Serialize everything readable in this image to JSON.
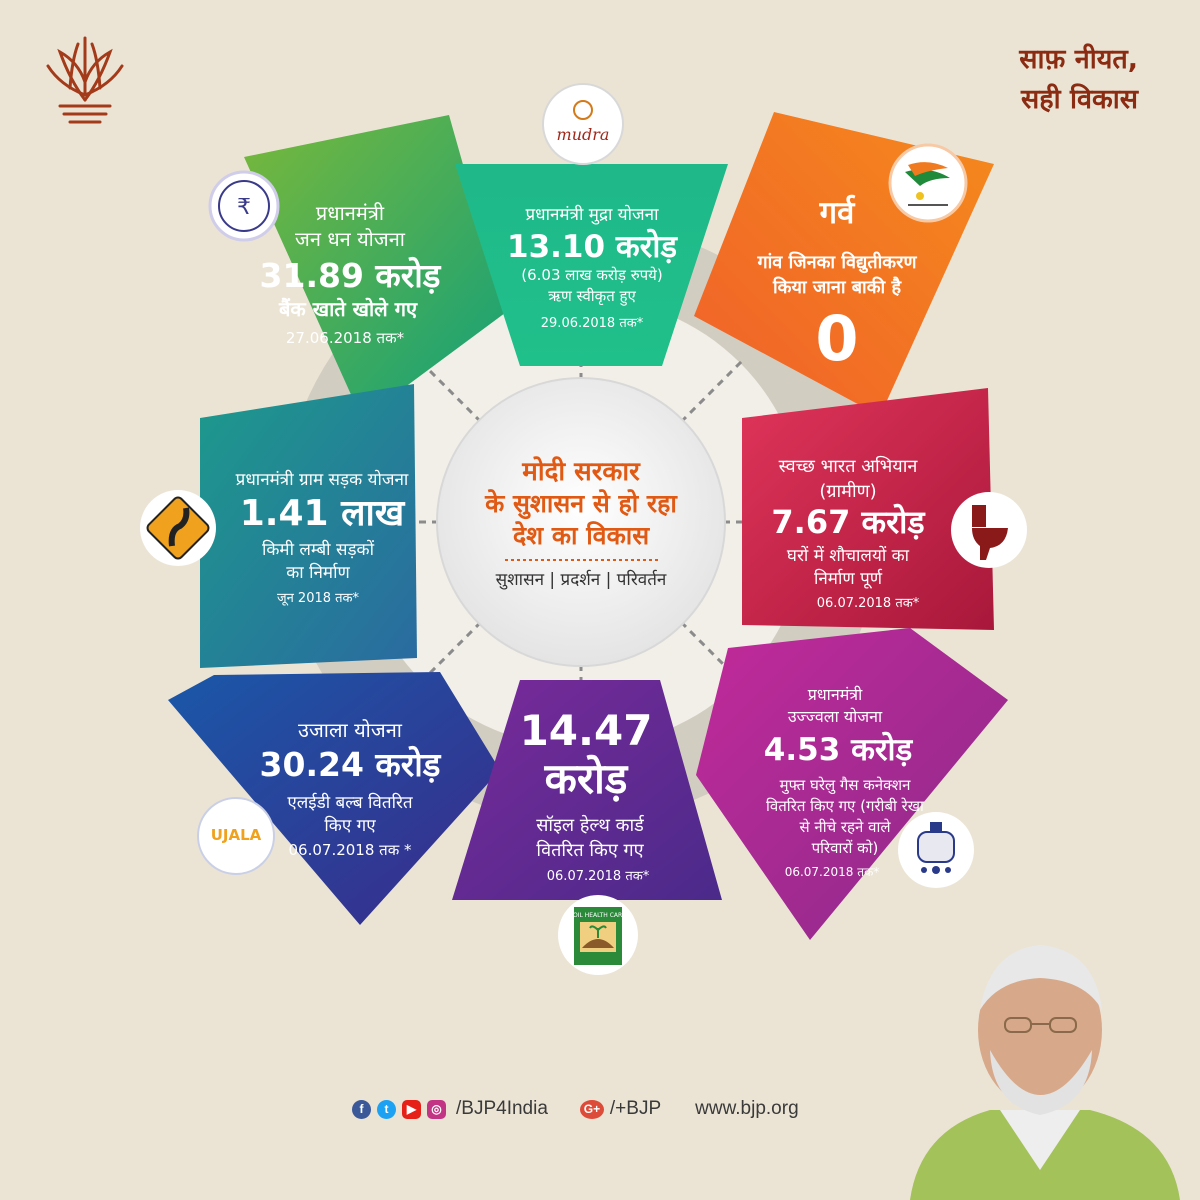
{
  "tagline": {
    "line1": "साफ़ नीयत,",
    "line2": "सही विकास"
  },
  "center": {
    "line1": "मोदी सरकार",
    "line2": "के सुशासन से हो रहा",
    "line3": "देश का विकास",
    "sub": "सुशासन | प्रदर्शन | परिवर्तन"
  },
  "segments": {
    "jandhan": {
      "line1": "प्रधानमंत्री",
      "line2": "जन धन योजना",
      "value": "31.89 करोड़",
      "desc": "बैंक खाते खोले गए",
      "date": "27.06.2018 तक*",
      "color": "#5ba842"
    },
    "mudra": {
      "line1": "प्रधानमंत्री मुद्रा योजना",
      "value": "13.10 करोड़",
      "desc1": "(6.03 लाख करोड़ रुपये)",
      "desc2": "ऋण स्वीकृत हुए",
      "date": "29.06.2018 तक*",
      "logo": "mudra",
      "color": "#1fb07f"
    },
    "garv": {
      "title": "गर्व",
      "desc1": "गांव जिनका विद्युतीकरण",
      "desc2": "किया जाना बाकी है",
      "value": "0",
      "color": "#f07a1f"
    },
    "gramsadak": {
      "line1": "प्रधानमंत्री ग्राम सड़क योजना",
      "value": "1.41 लाख",
      "desc1": "किमी लम्बी सड़कों",
      "desc2": "का निर्माण",
      "date": "जून 2018 तक*",
      "color": "#1f8c8c"
    },
    "swachh": {
      "line1": "स्वच्छ भारत अभियान",
      "line2": "(ग्रामीण)",
      "value": "7.67 करोड़",
      "desc1": "घरों में शौचालयों का",
      "desc2": "निर्माण पूर्ण",
      "date": "06.07.2018 तक*",
      "color": "#d22a4a"
    },
    "ujala": {
      "line1": "उजाला योजना",
      "value": "30.24 करोड़",
      "desc1": "एलईडी बल्ब वितरित",
      "desc2": "किए गए",
      "date": "06.07.2018 तक *",
      "logo": "UJALA",
      "color": "#1e4f9c"
    },
    "soil": {
      "value1": "14.47",
      "value2": "करोड़",
      "desc1": "सॉइल हेल्थ कार्ड",
      "desc2": "वितरित किए गए",
      "date": "06.07.2018 तक*",
      "logo": "SOIL HEALTH CARD",
      "color": "#6b2a8a"
    },
    "ujjwala": {
      "line1": "प्रधानमंत्री",
      "line2": "उज्ज्वला योजना",
      "value": "4.53 करोड़",
      "desc1": "मुफ्त घरेलु गैस कनेक्शन",
      "desc2": "वितरित किए गए (गरीबी रेखा",
      "desc3": "से नीचे रहने वाले",
      "desc4": "परिवारों को)",
      "date": "06.07.2018 तक*",
      "color": "#b0298e"
    }
  },
  "footer": {
    "social": "/BJP4India",
    "gplus": "/+BJP",
    "website": "www.bjp.org"
  }
}
